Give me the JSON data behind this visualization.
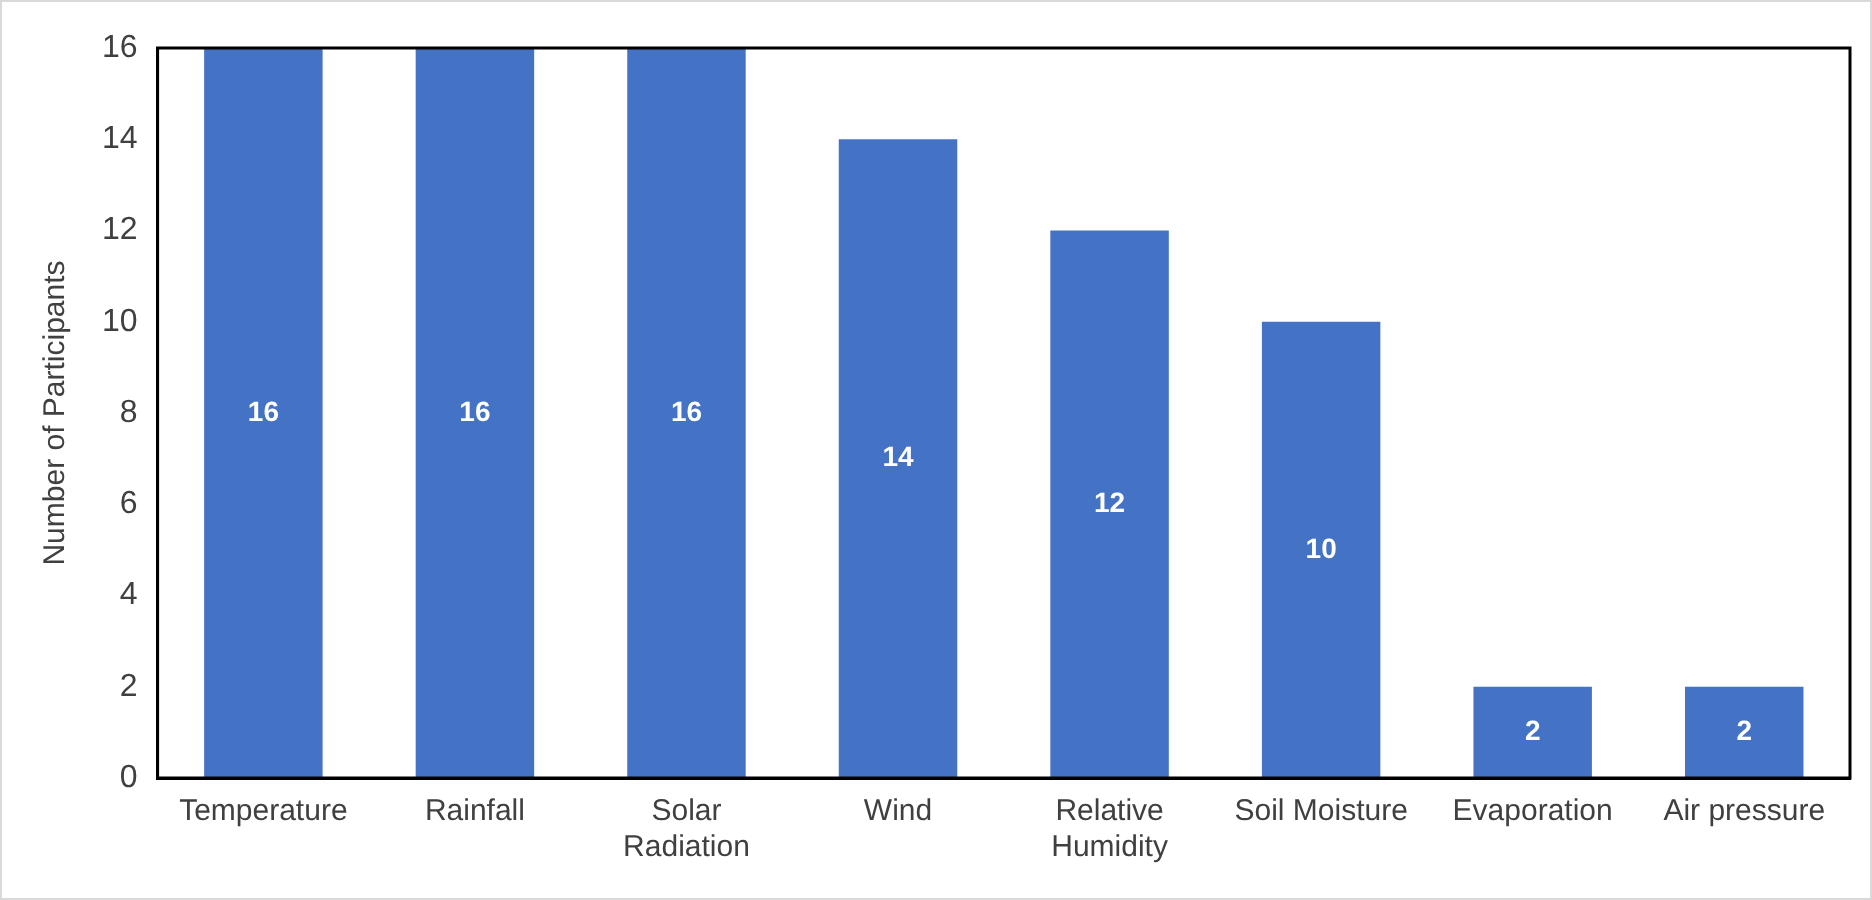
{
  "chart_data": {
    "type": "bar",
    "ylabel": "Number of Participants",
    "categories": [
      "Temperature",
      "Rainfall",
      "Solar Radiation",
      "Wind",
      "Relative Humidity",
      "Soil Moisture",
      "Evaporation",
      "Air pressure"
    ],
    "values": [
      16,
      16,
      16,
      14,
      12,
      10,
      2,
      2
    ],
    "color": "#4472c4",
    "ylim": [
      0,
      16
    ],
    "yticks": [
      0,
      2,
      4,
      6,
      8,
      10,
      12,
      14,
      16
    ],
    "grid": false,
    "legend": false,
    "data_labels": true
  }
}
